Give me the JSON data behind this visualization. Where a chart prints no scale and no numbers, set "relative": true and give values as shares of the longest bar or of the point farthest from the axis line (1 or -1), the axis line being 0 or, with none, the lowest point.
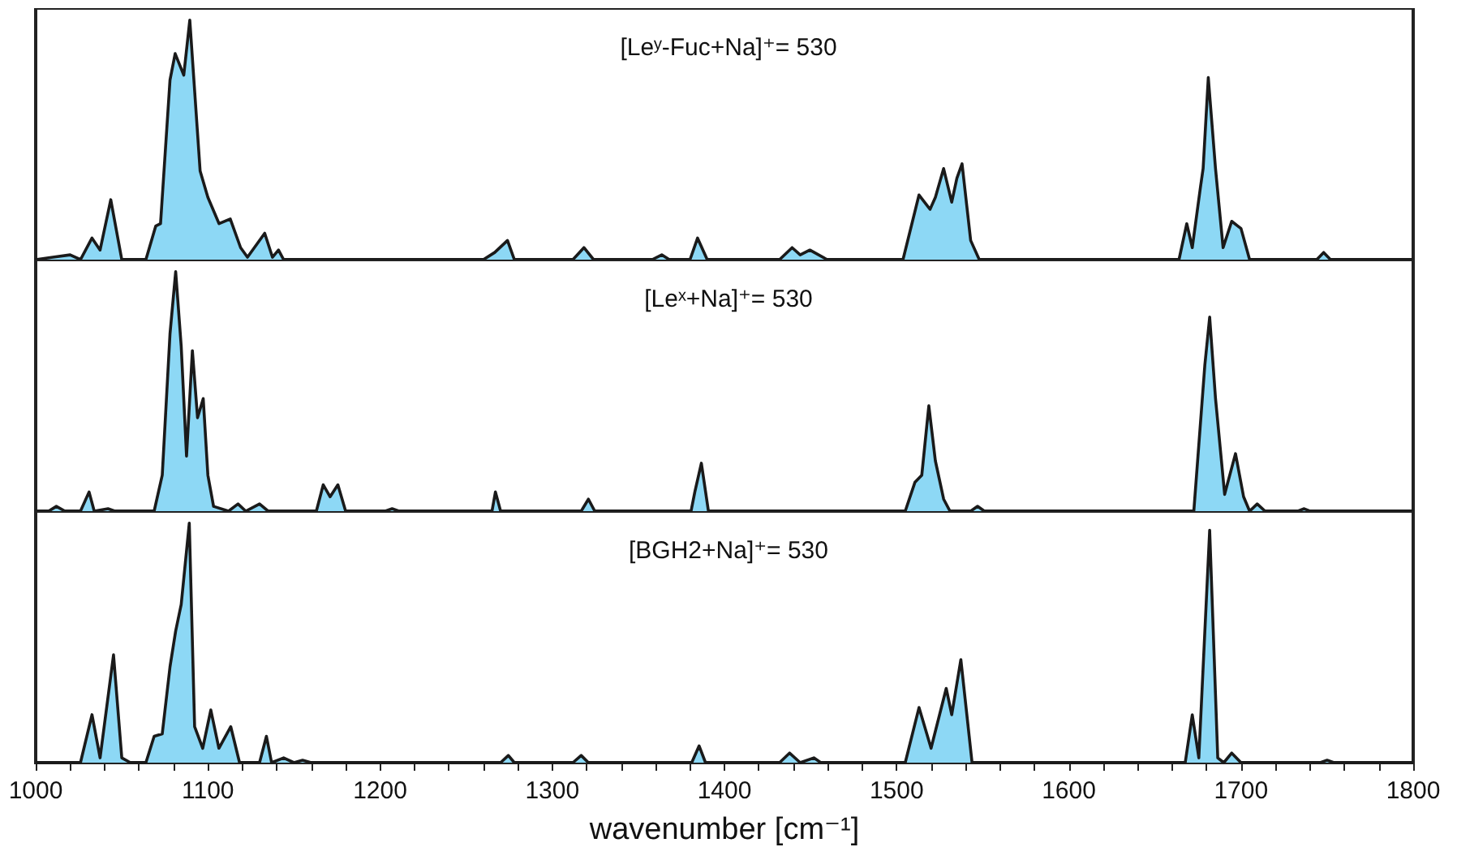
{
  "chart_data": [
    {
      "type": "area",
      "title": "[Leʸ-Fuc+Na]⁺= 530",
      "relative": true,
      "xlim": [
        1000,
        1800
      ],
      "xticks": [
        1000,
        1100,
        1200,
        1300,
        1400,
        1500,
        1600,
        1700,
        1800
      ],
      "tick_labels": false,
      "x": [
        1000,
        1010,
        1020,
        1026,
        1032.7,
        1037.4,
        1043.6,
        1050,
        1064,
        1069.7,
        1072.5,
        1078,
        1081,
        1086,
        1089.5,
        1095.5,
        1100,
        1106.5,
        1113,
        1119,
        1123,
        1133,
        1137.5,
        1141,
        1144,
        1260,
        1266.6,
        1274,
        1278,
        1312,
        1318.4,
        1324,
        1358,
        1363.6,
        1368,
        1380,
        1384.4,
        1390,
        1432,
        1439.3,
        1444,
        1449.6,
        1459.7,
        1503.7,
        1513,
        1519.4,
        1522.5,
        1527.3,
        1532,
        1535,
        1538,
        1543,
        1548,
        1664,
        1668.5,
        1671.7,
        1676.4,
        1678,
        1681,
        1685.2,
        1689.6,
        1694.6,
        1700,
        1705,
        1744,
        1748,
        1752,
        1800
      ],
      "series": [
        {
          "color": "#8dd8f5",
          "values": [
            0,
            0.01,
            0.02,
            0,
            0.09,
            0.04,
            0.25,
            0,
            0,
            0.14,
            0.15,
            0.75,
            0.86,
            0.77,
            1,
            0.37,
            0.26,
            0.15,
            0.17,
            0.05,
            0.01,
            0.11,
            0.01,
            0.04,
            0,
            0,
            0.03,
            0.08,
            0,
            0,
            0.05,
            0,
            0,
            0.02,
            0,
            0,
            0.09,
            0,
            0,
            0.05,
            0.02,
            0.04,
            0,
            0,
            0.27,
            0.21,
            0.26,
            0.38,
            0.24,
            0.34,
            0.4,
            0.08,
            0,
            0,
            0.15,
            0.05,
            0.3,
            0.38,
            0.76,
            0.38,
            0.05,
            0.16,
            0.13,
            0,
            0,
            0.03,
            0,
            0
          ]
        }
      ]
    },
    {
      "type": "area",
      "title": "[Leˣ+Na]⁺= 530",
      "relative": true,
      "xlim": [
        1000,
        1800
      ],
      "xticks": [
        1000,
        1100,
        1200,
        1300,
        1400,
        1500,
        1600,
        1700,
        1800
      ],
      "tick_labels": false,
      "x": [
        1000,
        1007.5,
        1012,
        1017,
        1026,
        1031,
        1034,
        1042,
        1046,
        1068.8,
        1073.5,
        1078,
        1081.3,
        1084.5,
        1087.6,
        1091,
        1094,
        1097.3,
        1100,
        1103.3,
        1112,
        1117.5,
        1122,
        1130,
        1135,
        1163,
        1167,
        1171,
        1175.5,
        1180,
        1203,
        1207,
        1211,
        1265,
        1267,
        1270,
        1316.8,
        1321,
        1324.7,
        1380.6,
        1382.8,
        1386.6,
        1390.7,
        1505,
        1510.6,
        1514.6,
        1518.7,
        1522.5,
        1527.3,
        1531,
        1543,
        1547,
        1551,
        1672.6,
        1679,
        1681.8,
        1685.2,
        1690.5,
        1696.8,
        1701.5,
        1705,
        1709.4,
        1714,
        1733,
        1736.7,
        1740,
        1800
      ],
      "series": [
        {
          "color": "#8dd8f5",
          "values": [
            0,
            0,
            0.02,
            0,
            0,
            0.08,
            0,
            0.01,
            0,
            0,
            0.15,
            0.74,
            1,
            0.69,
            0.23,
            0.67,
            0.39,
            0.47,
            0.15,
            0.02,
            0,
            0.03,
            0,
            0.03,
            0,
            0,
            0.11,
            0.06,
            0.11,
            0,
            0,
            0.01,
            0,
            0,
            0.08,
            0,
            0,
            0.05,
            0,
            0,
            0.08,
            0.2,
            0,
            0,
            0.12,
            0.15,
            0.44,
            0.21,
            0.05,
            0,
            0,
            0.02,
            0,
            0,
            0.61,
            0.81,
            0.47,
            0.07,
            0.24,
            0.06,
            0,
            0.03,
            0,
            0,
            0.01,
            0,
            0
          ]
        }
      ]
    },
    {
      "type": "area",
      "title": "[BGH2+Na]⁺= 530",
      "relative": true,
      "xlim": [
        1000,
        1800
      ],
      "xlabel": "wavenumber [cm⁻¹]",
      "tick_labels": "x",
      "xticks": [
        1000,
        {
          "value": 1020,
          "label": null
        },
        {
          "value": 1040,
          "label": null
        },
        {
          "value": 1060,
          "label": null
        },
        {
          "value": 1080,
          "label": null
        },
        1100,
        {
          "value": 1120,
          "label": null
        },
        {
          "value": 1140,
          "label": null
        },
        {
          "value": 1160,
          "label": null
        },
        {
          "value": 1180,
          "label": null
        },
        1200,
        {
          "value": 1220,
          "label": null
        },
        {
          "value": 1240,
          "label": null
        },
        {
          "value": 1260,
          "label": null
        },
        {
          "value": 1280,
          "label": null
        },
        1300,
        {
          "value": 1320,
          "label": null
        },
        {
          "value": 1340,
          "label": null
        },
        {
          "value": 1360,
          "label": null
        },
        {
          "value": 1380,
          "label": null
        },
        1400,
        {
          "value": 1420,
          "label": null
        },
        {
          "value": 1440,
          "label": null
        },
        {
          "value": 1460,
          "label": null
        },
        {
          "value": 1480,
          "label": null
        },
        1500,
        {
          "value": 1520,
          "label": null
        },
        {
          "value": 1540,
          "label": null
        },
        {
          "value": 1560,
          "label": null
        },
        {
          "value": 1580,
          "label": null
        },
        1600,
        {
          "value": 1620,
          "label": null
        },
        {
          "value": 1640,
          "label": null
        },
        {
          "value": 1660,
          "label": null
        },
        {
          "value": 1680,
          "label": null
        },
        1700,
        {
          "value": 1720,
          "label": null
        },
        {
          "value": 1740,
          "label": null
        },
        {
          "value": 1760,
          "label": null
        },
        {
          "value": 1780,
          "label": null
        },
        1800
      ],
      "x": [
        1000,
        1026,
        1032.7,
        1037.4,
        1045.2,
        1050,
        1055,
        1064,
        1068.8,
        1073.5,
        1078,
        1081.3,
        1084.5,
        1089.2,
        1092.3,
        1097,
        1101.7,
        1106.4,
        1113.3,
        1118.4,
        1130,
        1134,
        1137,
        1144,
        1150,
        1155,
        1160,
        1270,
        1274.5,
        1278,
        1312,
        1316.8,
        1321,
        1381,
        1385.3,
        1389,
        1432,
        1437.8,
        1444,
        1451.9,
        1456,
        1505,
        1513,
        1520,
        1528.8,
        1532,
        1537.3,
        1543.8,
        1667.6,
        1671.7,
        1675.5,
        1681.8,
        1686.5,
        1690,
        1694.6,
        1700,
        1746,
        1750,
        1754,
        1800
      ],
      "series": [
        {
          "color": "#8dd8f5",
          "values": [
            0,
            0,
            0.2,
            0.02,
            0.45,
            0.02,
            0,
            0,
            0.11,
            0.12,
            0.4,
            0.55,
            0.66,
            1,
            0.15,
            0.06,
            0.22,
            0.06,
            0.15,
            0,
            0,
            0.11,
            0,
            0.02,
            0,
            0.01,
            0,
            0,
            0.03,
            0,
            0,
            0.03,
            0,
            0,
            0.07,
            0,
            0,
            0.04,
            0,
            0.02,
            0,
            0,
            0.23,
            0.06,
            0.31,
            0.2,
            0.43,
            0,
            0,
            0.2,
            0.02,
            0.97,
            0.02,
            0,
            0.04,
            0,
            0,
            0.01,
            0,
            0
          ]
        }
      ]
    }
  ]
}
